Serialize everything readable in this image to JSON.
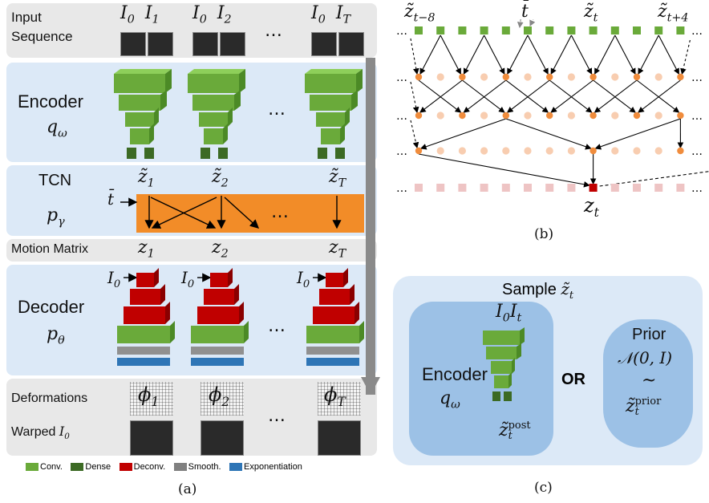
{
  "panel_a": {
    "caption": "(a)",
    "input_row": {
      "label_line1": "Input",
      "label_line2": "Sequence",
      "frames": [
        [
          "I",
          "0",
          "I",
          "1"
        ],
        [
          "I",
          "0",
          "I",
          "2"
        ],
        [
          "I",
          "0",
          "I",
          "T"
        ]
      ]
    },
    "encoder": {
      "label": "Encoder",
      "symbol": "q",
      "symbol_sub": "ω"
    },
    "tcn": {
      "label": "TCN",
      "symbol": "p",
      "symbol_sub": "γ",
      "tbar": "t̄",
      "latents": [
        [
          "z̃",
          "1"
        ],
        [
          "z̃",
          "2"
        ],
        [
          "z̃",
          "T"
        ]
      ]
    },
    "motion_matrix": {
      "label": "Motion Matrix",
      "latents": [
        [
          "z",
          "1"
        ],
        [
          "z",
          "2"
        ],
        [
          "z",
          "T"
        ]
      ]
    },
    "decoder": {
      "label": "Decoder",
      "symbol": "p",
      "symbol_sub": "θ",
      "input": [
        "I",
        "0"
      ]
    },
    "deformations": {
      "label": "Deformations",
      "phis": [
        [
          "ϕ",
          "1"
        ],
        [
          "ϕ",
          "2"
        ],
        [
          "ϕ",
          "T"
        ]
      ]
    },
    "warped": {
      "label": "Warped",
      "symbol": [
        "I",
        "0"
      ]
    },
    "ellipsis": "…",
    "legend": [
      {
        "name": "Conv.",
        "color": "#6aaa3a"
      },
      {
        "name": "Dense",
        "color": "#3c6a24"
      },
      {
        "name": "Deconv.",
        "color": "#c00000"
      },
      {
        "name": "Smooth.",
        "color": "#808080"
      },
      {
        "name": "Exponentiation",
        "color": "#2e75b6"
      }
    ]
  },
  "panel_b": {
    "caption": "(b)",
    "top_labels": [
      [
        "z̃",
        "t−8"
      ],
      [
        "t̄",
        ""
      ],
      [
        "z̃",
        "t"
      ],
      [
        "z̃",
        "t+4"
      ]
    ],
    "bottom_label": [
      "z",
      "t"
    ],
    "ellipsis": "…"
  },
  "panel_c": {
    "caption": "(c)",
    "title": [
      "Sample ",
      "z̃",
      "t"
    ],
    "encoder": {
      "inputs": [
        "I",
        "0",
        "I",
        "t"
      ],
      "label": "Encoder",
      "symbol": [
        "q",
        "ω"
      ],
      "output": [
        "z̃",
        "t",
        "post"
      ]
    },
    "or_label": "OR",
    "prior": {
      "label": "Prior",
      "dist": "𝒩(0, I)",
      "tilde": "~",
      "output": [
        "z̃",
        "t",
        "prior"
      ]
    }
  },
  "colors": {
    "panel_blue": "#dce9f7",
    "panel_gray": "#e8e8e8",
    "tcn_orange": "#f28c28",
    "conv_green": "#6aaa3a",
    "deconv_red": "#c00000",
    "node_orange": "#f08c3c",
    "node_light": "#f8cdb0",
    "square_pink": "#eec4c4",
    "output_red": "#c00000"
  }
}
